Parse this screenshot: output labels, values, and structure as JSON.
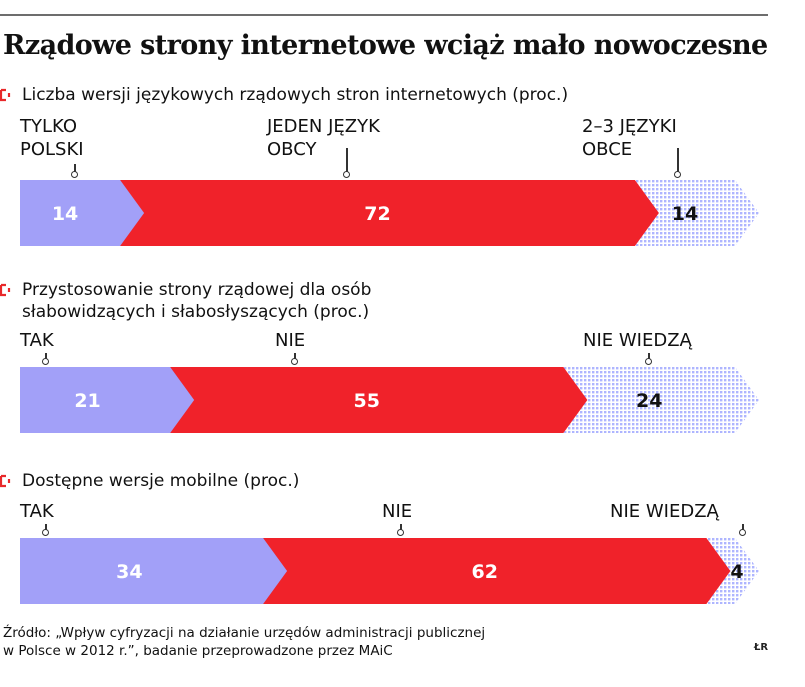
{
  "title": "Rządowe strony internetowe wciąż mało nowoczesne",
  "colors": {
    "blue": "#a2a0f8",
    "red": "#f0222a",
    "pattern": "#aeb5ff",
    "bullet": "#e8282a",
    "text": "#111111"
  },
  "chart_data": [
    {
      "type": "bar",
      "orientation": "horizontal-stacked-100",
      "title": "Liczba wersji językowych rządowych stron internetowych (proc.)",
      "categories": [
        "TYLKO POLSKI",
        "JEDEN JĘZYK OBCY",
        "2–3 JĘZYKI OBCE"
      ],
      "values": [
        14,
        72,
        14
      ],
      "labels": [
        {
          "line1": "TYLKO",
          "line2": "POLSKI"
        },
        {
          "line1": "JEDEN JĘZYK",
          "line2": "OBCY"
        },
        {
          "line1": "2–3 JĘZYKI",
          "line2": "OBCE"
        }
      ],
      "value_labels": [
        "14",
        "72",
        "14"
      ]
    },
    {
      "type": "bar",
      "orientation": "horizontal-stacked-100",
      "title": "Przystosowanie strony rządowej dla osób słabowidzących i słabosłyszących (proc.)",
      "title_line1": "Przystosowanie strony rządowej dla osób",
      "title_line2": "słabowidzących i słabosłyszących (proc.)",
      "categories": [
        "TAK",
        "NIE",
        "NIE WIEDZĄ"
      ],
      "values": [
        21,
        55,
        24
      ],
      "labels": [
        {
          "line1": "TAK"
        },
        {
          "line1": "NIE"
        },
        {
          "line1": "NIE WIEDZĄ"
        }
      ],
      "value_labels": [
        "21",
        "55",
        "24"
      ]
    },
    {
      "type": "bar",
      "orientation": "horizontal-stacked-100",
      "title": "Dostępne wersje mobilne (proc.)",
      "categories": [
        "TAK",
        "NIE",
        "NIE WIEDZĄ"
      ],
      "values": [
        34,
        62,
        4
      ],
      "labels": [
        {
          "line1": "TAK"
        },
        {
          "line1": "NIE"
        },
        {
          "line1": "NIE WIEDZĄ"
        }
      ],
      "value_labels": [
        "34",
        "62",
        "4"
      ]
    }
  ],
  "footer": {
    "line1": "Źródło: „Wpływ cyfryzacji na działanie urzędów  administracji publicznej",
    "line2": "w Polsce w 2012 r.”, badanie przeprowadzone przez MAiC",
    "credit": "ŁR"
  }
}
